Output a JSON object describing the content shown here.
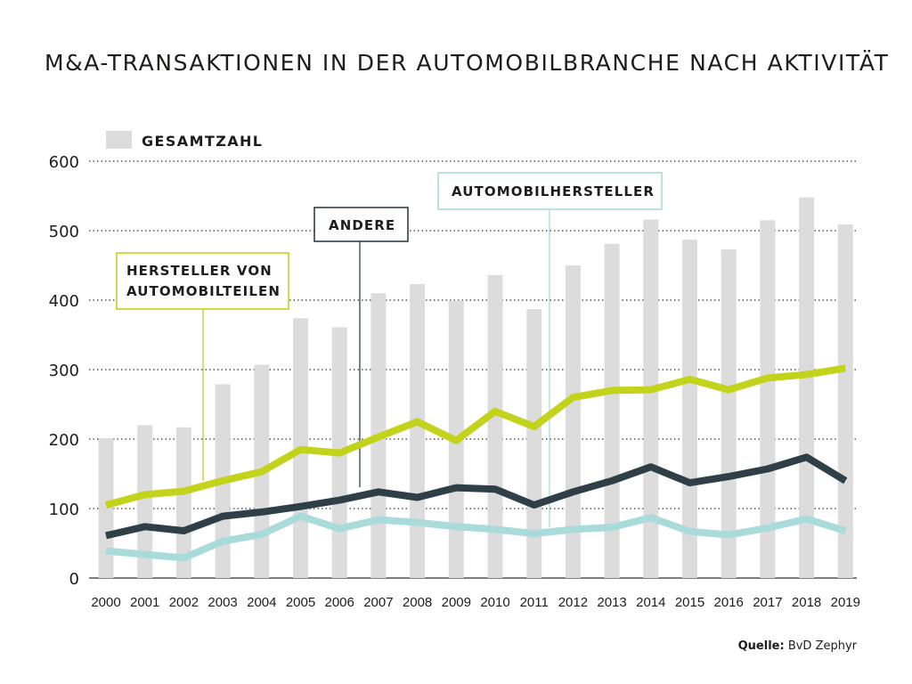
{
  "title": "M&A-TRANSAKTIONEN IN DER AUTOMOBILBRANCHE NACH AKTIVITÄT",
  "source_label": "Quelle:",
  "source_value": "BvD Zephyr",
  "colors": {
    "bars": "#dcdcdc",
    "hersteller_teile": "#c3d21a",
    "andere": "#2f3f47",
    "automobilhersteller": "#a9dbdb",
    "grid": "#555555"
  },
  "chart_data": {
    "type": "bar",
    "title": "M&A-TRANSAKTIONEN IN DER AUTOMOBILBRANCHE NACH AKTIVITÄT",
    "xlabel": "",
    "ylabel": "",
    "ylim": [
      0,
      600
    ],
    "yticks": [
      0,
      100,
      200,
      300,
      400,
      500,
      600
    ],
    "grid": true,
    "categories": [
      "2000",
      "2001",
      "2002",
      "2003",
      "2004",
      "2005",
      "2006",
      "2007",
      "2008",
      "2009",
      "2010",
      "2011",
      "2012",
      "2013",
      "2014",
      "2015",
      "2016",
      "2017",
      "2018",
      "2019"
    ],
    "series": [
      {
        "name": "GESAMTZAHL",
        "type": "bar",
        "values": [
          201,
          220,
          217,
          279,
          307,
          374,
          361,
          410,
          423,
          399,
          436,
          387,
          450,
          481,
          516,
          487,
          473,
          515,
          548,
          509
        ]
      },
      {
        "name": "HERSTELLER VON AUTOMOBILTEILEN",
        "type": "line",
        "values": [
          105,
          120,
          125,
          140,
          153,
          185,
          180,
          203,
          225,
          198,
          240,
          218,
          260,
          270,
          271,
          286,
          271,
          288,
          293,
          302
        ]
      },
      {
        "name": "ANDERE",
        "type": "line",
        "values": [
          61,
          74,
          68,
          89,
          95,
          103,
          112,
          124,
          116,
          130,
          128,
          105,
          124,
          140,
          160,
          137,
          146,
          157,
          174,
          140
        ]
      },
      {
        "name": "AUTOMOBILHERSTELLER",
        "type": "line",
        "values": [
          39,
          34,
          29,
          53,
          63,
          89,
          71,
          84,
          80,
          74,
          70,
          64,
          70,
          73,
          87,
          67,
          62,
          72,
          85,
          68
        ]
      }
    ]
  }
}
